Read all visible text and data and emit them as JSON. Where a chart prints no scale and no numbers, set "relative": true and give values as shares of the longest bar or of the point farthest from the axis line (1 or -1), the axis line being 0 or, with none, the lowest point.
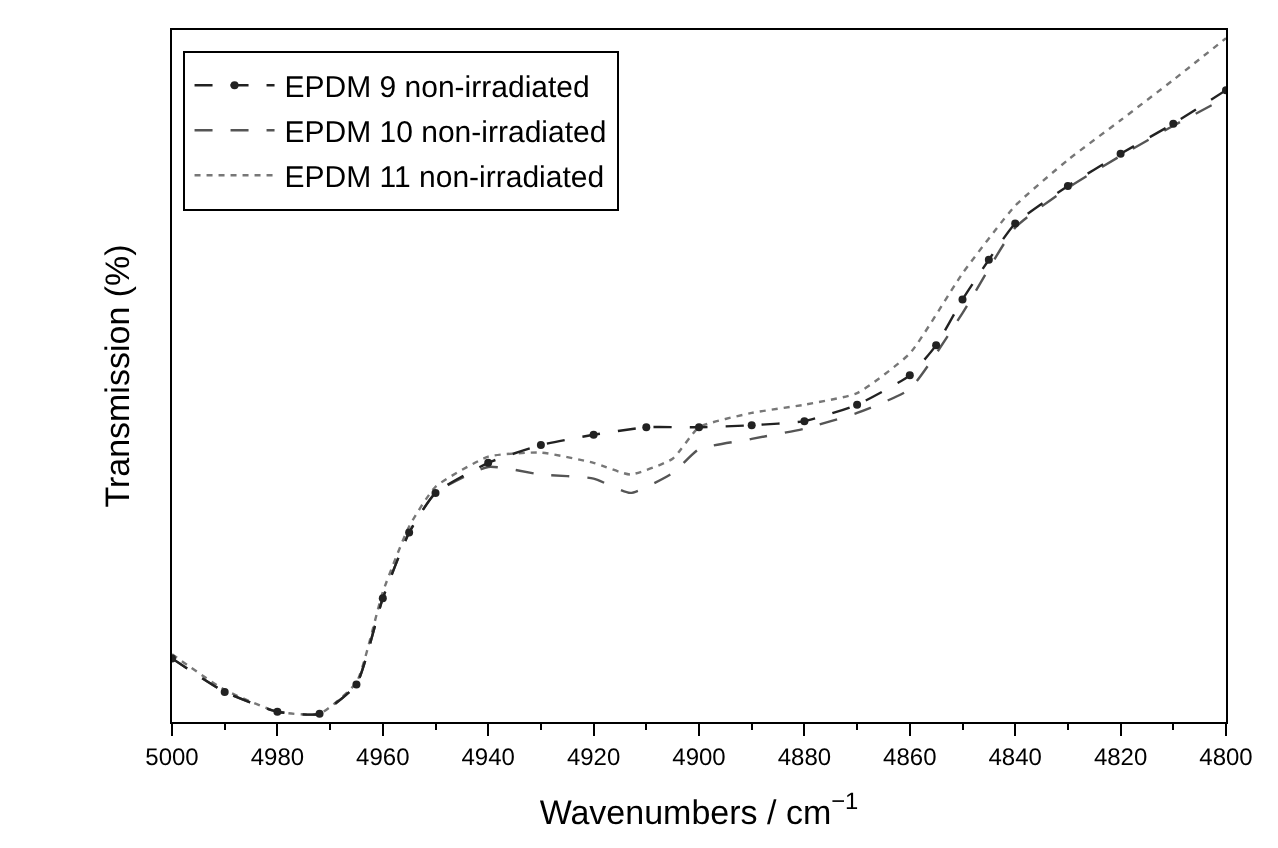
{
  "chart_data": {
    "type": "line",
    "relative": true,
    "xlabel": "Wavenumbers / cm$^{−1}$",
    "ylabel": "Transmission (%)",
    "xlim": [
      5000,
      4800
    ],
    "xticks": [
      5000,
      4980,
      4960,
      4940,
      4920,
      4900,
      4880,
      4860,
      4840,
      4820,
      4800
    ],
    "legend": "top left",
    "series": [
      {
        "name": "EPDM 9 non-irradiated",
        "color": "#222222",
        "line_style": "dashed",
        "marker": "circle",
        "x": [
          5000,
          4990,
          4980,
          4972,
          4965,
          4960,
          4955,
          4950,
          4940,
          4930,
          4920,
          4910,
          4900,
          4890,
          4880,
          4870,
          4860,
          4855,
          4850,
          4845,
          4840,
          4830,
          4820,
          4810,
          4800
        ],
        "values": [
          0.093,
          0.044,
          0.015,
          0.012,
          0.055,
          0.181,
          0.277,
          0.335,
          0.379,
          0.405,
          0.42,
          0.431,
          0.431,
          0.434,
          0.44,
          0.464,
          0.507,
          0.551,
          0.618,
          0.676,
          0.729,
          0.784,
          0.831,
          0.875,
          0.924
        ]
      },
      {
        "name": "EPDM 10 non-irradiated",
        "color": "#555555",
        "line_style": "dashed",
        "marker": "none",
        "x": [
          5000,
          4990,
          4980,
          4972,
          4965,
          4960,
          4955,
          4950,
          4940,
          4930,
          4920,
          4913,
          4905,
          4900,
          4890,
          4880,
          4870,
          4860,
          4850,
          4840,
          4830,
          4820,
          4810,
          4800
        ],
        "values": [
          0.093,
          0.044,
          0.015,
          0.012,
          0.055,
          0.181,
          0.277,
          0.335,
          0.373,
          0.362,
          0.356,
          0.335,
          0.364,
          0.399,
          0.414,
          0.429,
          0.452,
          0.487,
          0.598,
          0.723,
          0.781,
          0.828,
          0.872,
          0.913
        ]
      },
      {
        "name": "EPDM 11 non-irradiated",
        "color": "#777777",
        "line_style": "dotted",
        "marker": "none",
        "x": [
          5000,
          4990,
          4980,
          4972,
          4965,
          4960,
          4955,
          4950,
          4940,
          4930,
          4920,
          4913,
          4905,
          4900,
          4890,
          4880,
          4870,
          4860,
          4850,
          4840,
          4830,
          4820,
          4810,
          4800
        ],
        "values": [
          0.099,
          0.047,
          0.015,
          0.012,
          0.058,
          0.19,
          0.286,
          0.344,
          0.388,
          0.394,
          0.379,
          0.362,
          0.385,
          0.431,
          0.452,
          0.464,
          0.481,
          0.539,
          0.656,
          0.755,
          0.822,
          0.88,
          0.939,
          1
        ]
      }
    ]
  }
}
